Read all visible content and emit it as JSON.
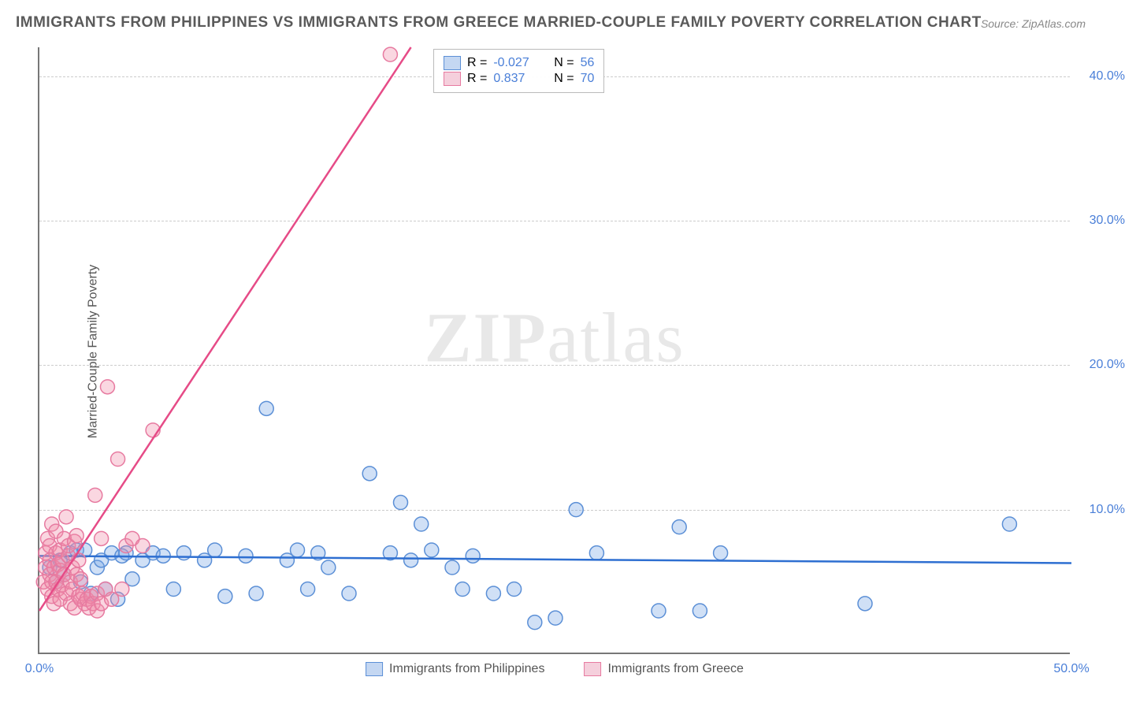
{
  "title": "IMMIGRANTS FROM PHILIPPINES VS IMMIGRANTS FROM GREECE MARRIED-COUPLE FAMILY POVERTY CORRELATION CHART",
  "source": "Source: ZipAtlas.com",
  "watermark_bold": "ZIP",
  "watermark_light": "atlas",
  "y_axis_label": "Married-Couple Family Poverty",
  "chart": {
    "type": "scatter",
    "xlim": [
      0,
      50
    ],
    "ylim": [
      0,
      42
    ],
    "xticks": [
      {
        "v": 0,
        "label": "0.0%"
      },
      {
        "v": 50,
        "label": "50.0%"
      }
    ],
    "yticks": [
      {
        "v": 10,
        "label": "10.0%"
      },
      {
        "v": 20,
        "label": "20.0%"
      },
      {
        "v": 30,
        "label": "30.0%"
      },
      {
        "v": 40,
        "label": "40.0%"
      }
    ],
    "grid_color": "#cccccc",
    "axis_color": "#777777",
    "background_color": "#ffffff",
    "marker_radius": 9,
    "marker_stroke_width": 1.5,
    "line_width": 2.5
  },
  "series": [
    {
      "name": "Immigrants from Philippines",
      "color_fill": "rgba(120,165,230,0.35)",
      "color_stroke": "#5b8fd6",
      "swatch_fill": "#c4d7f2",
      "swatch_stroke": "#5b8fd6",
      "stats": {
        "R": "-0.027",
        "N": "56"
      },
      "trend": {
        "x1": 0,
        "y1": 6.8,
        "x2": 50,
        "y2": 6.3,
        "color": "#2e6fd1"
      },
      "points": [
        [
          0.5,
          6
        ],
        [
          0.8,
          5
        ],
        [
          1,
          6.5
        ],
        [
          1.2,
          5.5
        ],
        [
          1.5,
          7
        ],
        [
          1.8,
          7.2
        ],
        [
          2,
          5
        ],
        [
          2.2,
          7.2
        ],
        [
          2.5,
          4.2
        ],
        [
          2.8,
          6
        ],
        [
          3,
          6.5
        ],
        [
          3.2,
          4.5
        ],
        [
          3.5,
          7
        ],
        [
          3.8,
          3.8
        ],
        [
          4,
          6.8
        ],
        [
          4.2,
          7
        ],
        [
          4.5,
          5.2
        ],
        [
          5,
          6.5
        ],
        [
          5.5,
          7
        ],
        [
          6,
          6.8
        ],
        [
          6.5,
          4.5
        ],
        [
          7,
          7
        ],
        [
          8,
          6.5
        ],
        [
          8.5,
          7.2
        ],
        [
          9,
          4
        ],
        [
          10,
          6.8
        ],
        [
          10.5,
          4.2
        ],
        [
          11,
          17
        ],
        [
          12,
          6.5
        ],
        [
          12.5,
          7.2
        ],
        [
          13,
          4.5
        ],
        [
          13.5,
          7
        ],
        [
          14,
          6
        ],
        [
          15,
          4.2
        ],
        [
          16,
          12.5
        ],
        [
          17,
          7
        ],
        [
          17.5,
          10.5
        ],
        [
          18,
          6.5
        ],
        [
          18.5,
          9
        ],
        [
          19,
          7.2
        ],
        [
          20,
          6
        ],
        [
          20.5,
          4.5
        ],
        [
          21,
          6.8
        ],
        [
          22,
          4.2
        ],
        [
          23,
          4.5
        ],
        [
          24,
          2.2
        ],
        [
          25,
          2.5
        ],
        [
          26,
          10
        ],
        [
          27,
          7
        ],
        [
          30,
          3
        ],
        [
          31,
          8.8
        ],
        [
          32,
          3
        ],
        [
          33,
          7
        ],
        [
          40,
          3.5
        ],
        [
          47,
          9
        ]
      ]
    },
    {
      "name": "Immigrants from Greece",
      "color_fill": "rgba(240,140,170,0.35)",
      "color_stroke": "#e77aa0",
      "swatch_fill": "#f5cfdc",
      "swatch_stroke": "#e77aa0",
      "stats": {
        "R": "0.837",
        "N": "70"
      },
      "trend": {
        "x1": 0,
        "y1": 3,
        "x2": 18,
        "y2": 42,
        "color": "#e64b87"
      },
      "points": [
        [
          0.2,
          5
        ],
        [
          0.3,
          6
        ],
        [
          0.3,
          7
        ],
        [
          0.4,
          4.5
        ],
        [
          0.4,
          8
        ],
        [
          0.5,
          5.5
        ],
        [
          0.5,
          6.5
        ],
        [
          0.5,
          7.5
        ],
        [
          0.6,
          4
        ],
        [
          0.6,
          9
        ],
        [
          0.6,
          5
        ],
        [
          0.7,
          6
        ],
        [
          0.7,
          3.5
        ],
        [
          0.8,
          7
        ],
        [
          0.8,
          5
        ],
        [
          0.8,
          8.5
        ],
        [
          0.9,
          4.5
        ],
        [
          0.9,
          6.2
        ],
        [
          1,
          5.8
        ],
        [
          1,
          7.2
        ],
        [
          1,
          3.8
        ],
        [
          1.1,
          6.5
        ],
        [
          1.1,
          4.8
        ],
        [
          1.2,
          8
        ],
        [
          1.2,
          5.5
        ],
        [
          1.3,
          9.5
        ],
        [
          1.3,
          4.2
        ],
        [
          1.4,
          6.8
        ],
        [
          1.4,
          7.5
        ],
        [
          1.5,
          5
        ],
        [
          1.5,
          3.5
        ],
        [
          1.6,
          6
        ],
        [
          1.6,
          4.5
        ],
        [
          1.7,
          7.8
        ],
        [
          1.7,
          3.2
        ],
        [
          1.8,
          5.5
        ],
        [
          1.8,
          8.2
        ],
        [
          1.9,
          4
        ],
        [
          1.9,
          6.5
        ],
        [
          2,
          3.8
        ],
        [
          2,
          5.2
        ],
        [
          2.1,
          4.2
        ],
        [
          2.2,
          3.5
        ],
        [
          2.3,
          3.8
        ],
        [
          2.4,
          3.2
        ],
        [
          2.5,
          4
        ],
        [
          2.6,
          3.5
        ],
        [
          2.7,
          11
        ],
        [
          2.8,
          4.2
        ],
        [
          2.8,
          3
        ],
        [
          3,
          3.5
        ],
        [
          3,
          8
        ],
        [
          3.2,
          4.5
        ],
        [
          3.3,
          18.5
        ],
        [
          3.5,
          3.8
        ],
        [
          3.8,
          13.5
        ],
        [
          4,
          4.5
        ],
        [
          4.2,
          7.5
        ],
        [
          4.5,
          8
        ],
        [
          5,
          7.5
        ],
        [
          5.5,
          15.5
        ],
        [
          17,
          41.5
        ]
      ]
    }
  ],
  "legend": {
    "r_label": "R =",
    "n_label": "N ="
  }
}
